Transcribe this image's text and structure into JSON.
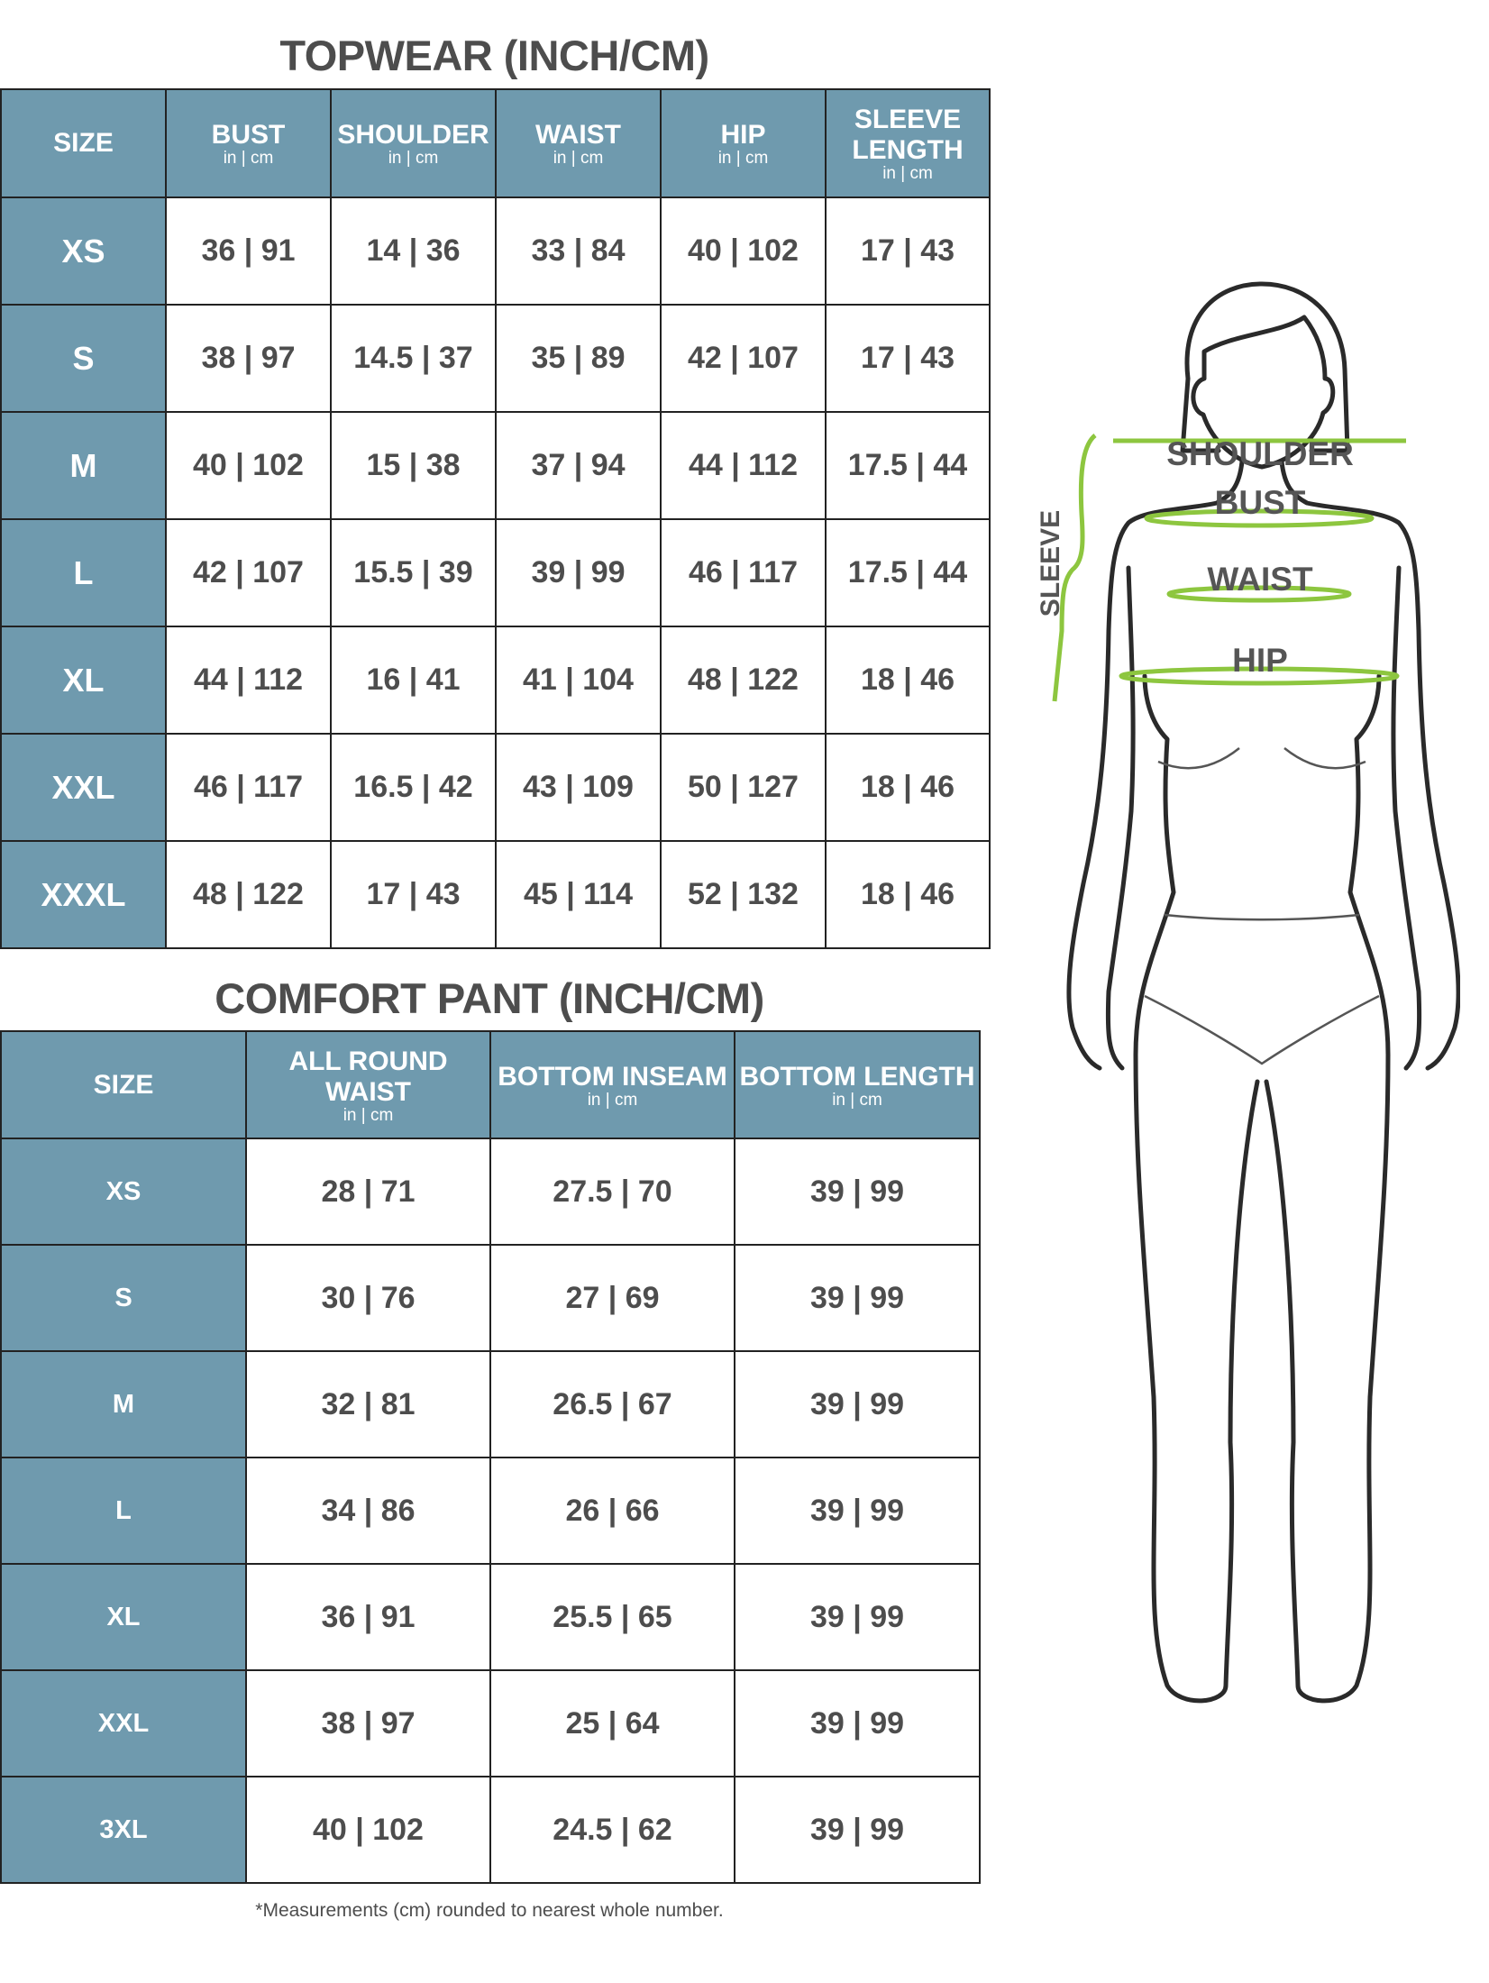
{
  "topwear": {
    "title": "TOPWEAR (INCH/CM)",
    "unit_label": "in | cm",
    "headers": [
      "SIZE",
      "BUST",
      "SHOULDER",
      "WAIST",
      "HIP",
      "SLEEVE LENGTH"
    ],
    "rows": [
      {
        "size": "XS",
        "values": [
          "36 | 91",
          "14 | 36",
          "33 | 84",
          "40 | 102",
          "17 | 43"
        ]
      },
      {
        "size": "S",
        "values": [
          "38 | 97",
          "14.5 | 37",
          "35 | 89",
          "42 | 107",
          "17 | 43"
        ]
      },
      {
        "size": "M",
        "values": [
          "40 | 102",
          "15 | 38",
          "37 | 94",
          "44 | 112",
          "17.5 | 44"
        ]
      },
      {
        "size": "L",
        "values": [
          "42 | 107",
          "15.5 | 39",
          "39 | 99",
          "46 | 117",
          "17.5 | 44"
        ]
      },
      {
        "size": "XL",
        "values": [
          "44 | 112",
          "16 | 41",
          "41 | 104",
          "48 | 122",
          "18 | 46"
        ]
      },
      {
        "size": "XXL",
        "values": [
          "46 | 117",
          "16.5 | 42",
          "43 | 109",
          "50 | 127",
          "18 | 46"
        ]
      },
      {
        "size": "XXXL",
        "values": [
          "48 | 122",
          "17 | 43",
          "45 | 114",
          "52 | 132",
          "18 | 46"
        ]
      }
    ]
  },
  "comfort_pant": {
    "title": "COMFORT PANT (INCH/CM)",
    "unit_label": "in | cm",
    "headers": [
      "SIZE",
      "ALL ROUND WAIST",
      "BOTTOM INSEAM",
      "BOTTOM LENGTH"
    ],
    "rows": [
      {
        "size": "XS",
        "values": [
          "28 | 71",
          "27.5 | 70",
          "39 | 99"
        ]
      },
      {
        "size": "S",
        "values": [
          "30 | 76",
          "27 | 69",
          "39 | 99"
        ]
      },
      {
        "size": "M",
        "values": [
          "32 | 81",
          "26.5 | 67",
          "39 | 99"
        ]
      },
      {
        "size": "L",
        "values": [
          "34 | 86",
          "26 | 66",
          "39 | 99"
        ]
      },
      {
        "size": "XL",
        "values": [
          "36 | 91",
          "25.5 | 65",
          "39 | 99"
        ]
      },
      {
        "size": "XXL",
        "values": [
          "38 | 97",
          "25 | 64",
          "39 | 99"
        ]
      },
      {
        "size": "3XL",
        "values": [
          "40 | 102",
          "24.5 | 62",
          "39 | 99"
        ]
      }
    ]
  },
  "footnote": "*Measurements (cm) rounded to nearest whole number.",
  "figure": {
    "labels": {
      "shoulder": "SHOULDER",
      "bust": "BUST",
      "waist": "WAIST",
      "hip": "HIP",
      "sleeve": "SLEEVE"
    }
  },
  "colors": {
    "header_bg": "#6f9aae",
    "text": "#4d4d4d",
    "measure_line": "#8dc63f"
  }
}
